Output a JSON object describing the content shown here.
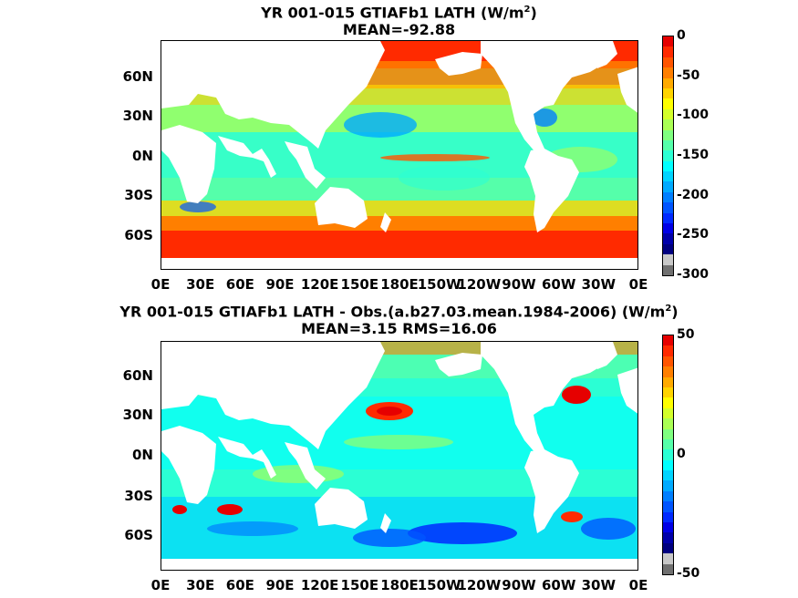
{
  "panels": [
    {
      "title_main": "YR 001-015 GTIAFb1  LATH (W/m",
      "title_sup": "2",
      "title_close": ")",
      "subtitle": "MEAN=-92.88",
      "colorbar": {
        "labels": [
          "0",
          "-50",
          "-100",
          "-150",
          "-200",
          "-250",
          "-300"
        ],
        "colors": [
          "#e60000",
          "#ff2a00",
          "#ff5500",
          "#ff7f00",
          "#ffaa00",
          "#ffd400",
          "#ffff00",
          "#d4ff2b",
          "#aaff55",
          "#7fff80",
          "#55ffaa",
          "#2bffd4",
          "#00ffff",
          "#00d4ff",
          "#00aaff",
          "#007fff",
          "#0055ff",
          "#002aff",
          "#0000e6",
          "#0000aa",
          "#000080",
          "#c8c8c8",
          "#707070"
        ]
      }
    },
    {
      "title_main": "YR 001-015 GTIAFb1 LATH - Obs.(a.b27.03.mean.1984-2006) (W/m",
      "title_sup": "2",
      "title_close": ")",
      "subtitle": "MEAN=3.15 RMS=16.06",
      "colorbar": {
        "labels": [
          "50",
          "0",
          "-50"
        ],
        "colors": [
          "#e60000",
          "#ff2a00",
          "#ff5500",
          "#ff7f00",
          "#ffaa00",
          "#ffd400",
          "#ffff00",
          "#d4ff2b",
          "#aaff55",
          "#7fff80",
          "#55ffaa",
          "#2bffd4",
          "#00ffff",
          "#00d4ff",
          "#00aaff",
          "#007fff",
          "#0055ff",
          "#002aff",
          "#0000e6",
          "#0000aa",
          "#000080",
          "#c8c8c8",
          "#707070"
        ]
      }
    }
  ],
  "lat_labels": [
    "60N",
    "30N",
    "0N",
    "30S",
    "60S"
  ],
  "lon_labels": [
    "0E",
    "30E",
    "60E",
    "90E",
    "120E",
    "150E",
    "180E",
    "150W",
    "120W",
    "90W",
    "60W",
    "30W",
    "0E"
  ]
}
